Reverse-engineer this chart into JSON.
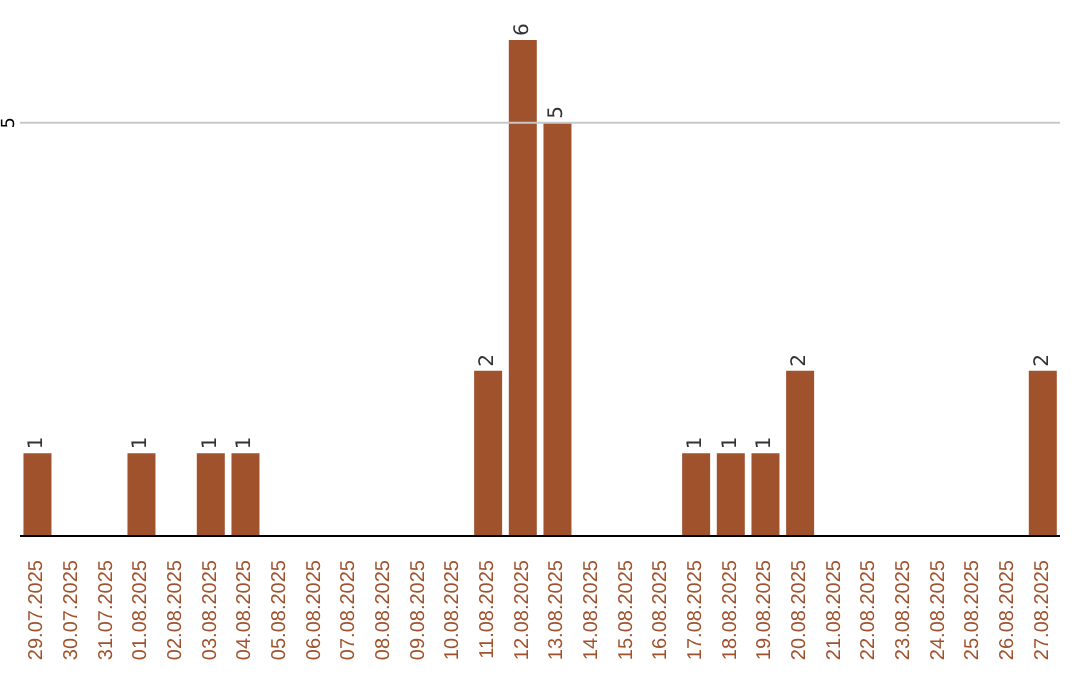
{
  "chart_data": {
    "type": "bar",
    "categories": [
      "29.07.2025",
      "30.07.2025",
      "31.07.2025",
      "01.08.2025",
      "02.08.2025",
      "03.08.2025",
      "04.08.2025",
      "05.08.2025",
      "06.08.2025",
      "07.08.2025",
      "08.08.2025",
      "09.08.2025",
      "10.08.2025",
      "11.08.2025",
      "12.08.2025",
      "13.08.2025",
      "14.08.2025",
      "15.08.2025",
      "16.08.2025",
      "17.08.2025",
      "18.08.2025",
      "19.08.2025",
      "20.08.2025",
      "21.08.2025",
      "22.08.2025",
      "23.08.2025",
      "24.08.2025",
      "25.08.2025",
      "26.08.2025",
      "27.08.2025"
    ],
    "values": [
      1,
      0,
      0,
      1,
      0,
      1,
      1,
      0,
      0,
      0,
      0,
      0,
      0,
      2,
      6,
      5,
      0,
      0,
      0,
      1,
      1,
      1,
      2,
      0,
      0,
      0,
      0,
      0,
      0,
      2
    ],
    "value_labels": [
      "1",
      null,
      null,
      "1",
      null,
      "1",
      "1",
      null,
      null,
      null,
      null,
      null,
      null,
      "2",
      "6",
      "5",
      null,
      null,
      null,
      "1",
      "1",
      "1",
      "2",
      null,
      null,
      null,
      null,
      null,
      null,
      "2"
    ],
    "color": "#a0522d",
    "ylim": [
      0,
      6
    ],
    "yticks": [
      5
    ],
    "grid": "y"
  }
}
